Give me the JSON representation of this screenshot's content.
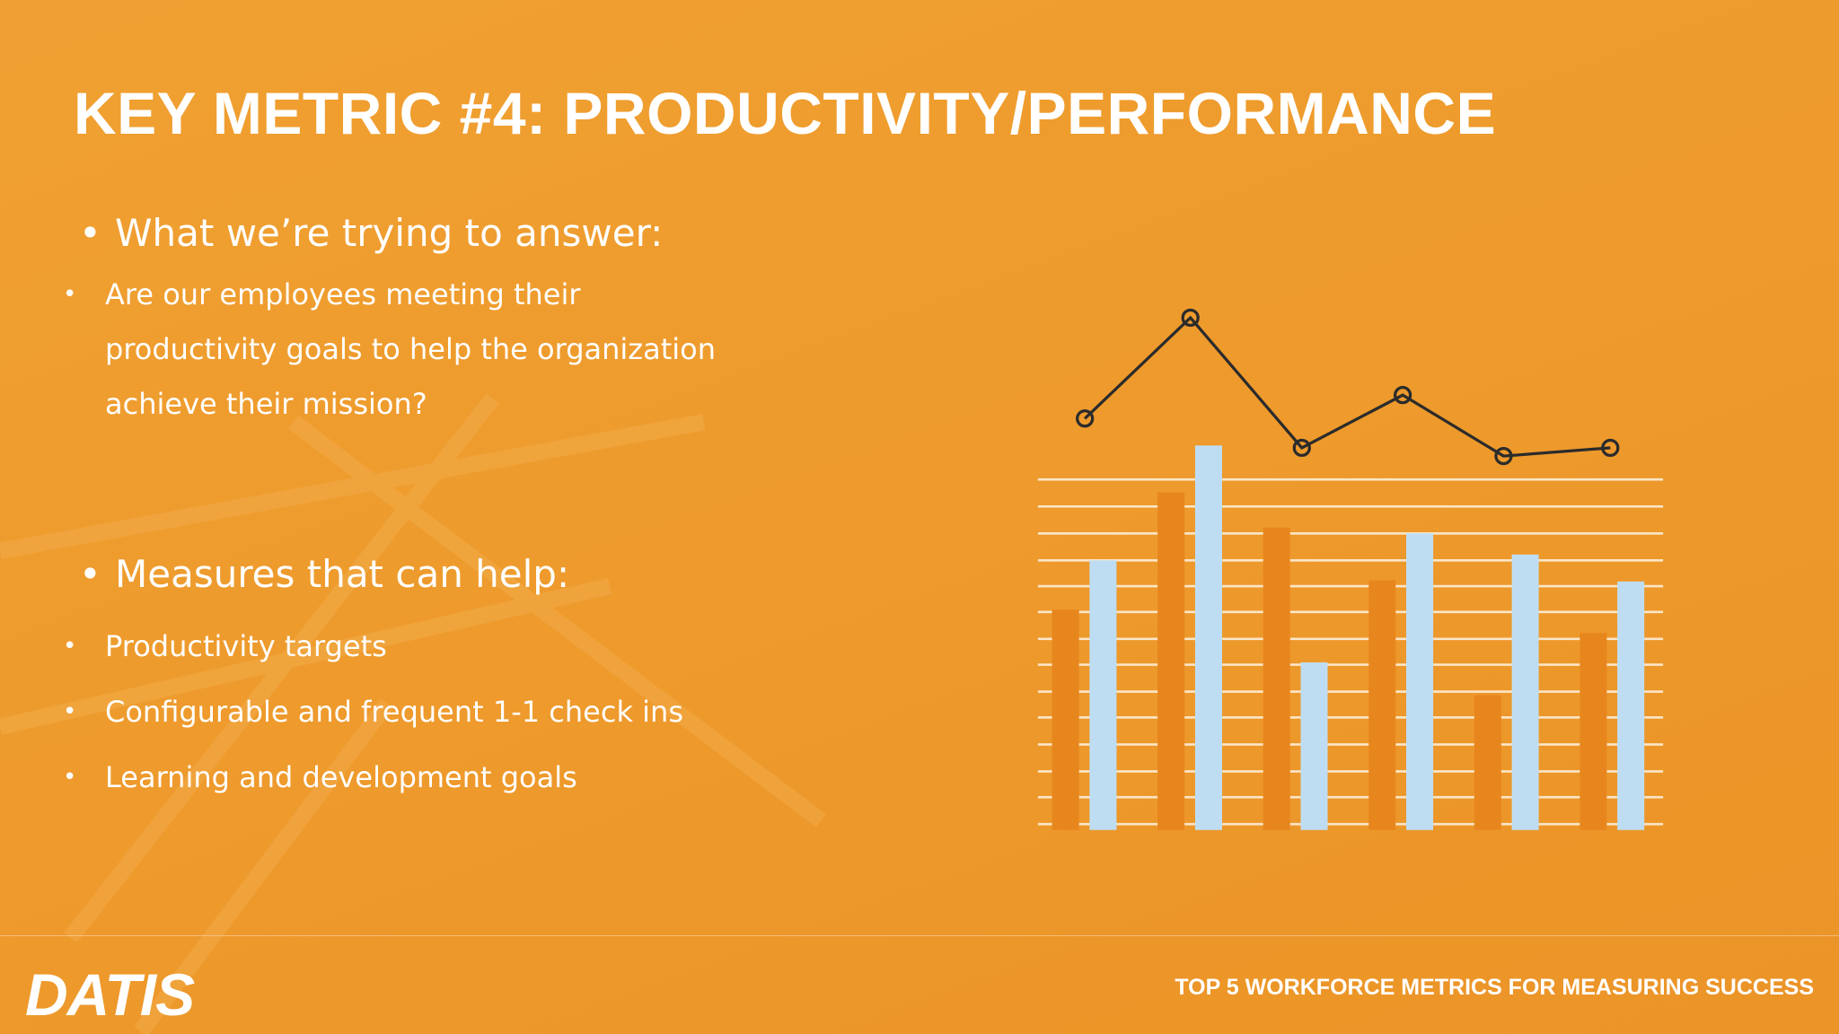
{
  "title": "KEY METRIC #4: PRODUCTIVITY/PERFORMANCE",
  "bullets": [
    {
      "text": "What we’re trying to answer:",
      "items": [
        "Are our employees meeting their productivity goals to help the organization achieve their mission?"
      ]
    },
    {
      "text": "Measures that can help:",
      "items": [
        "Productivity targets",
        "Configurable and frequent 1-1 check ins",
        "Learning and development goals"
      ]
    }
  ],
  "footer": {
    "tagline": "TOP 5 WORKFORCE METRICS FOR MEASURING SUCCESS",
    "logo": "DATIS"
  }
}
